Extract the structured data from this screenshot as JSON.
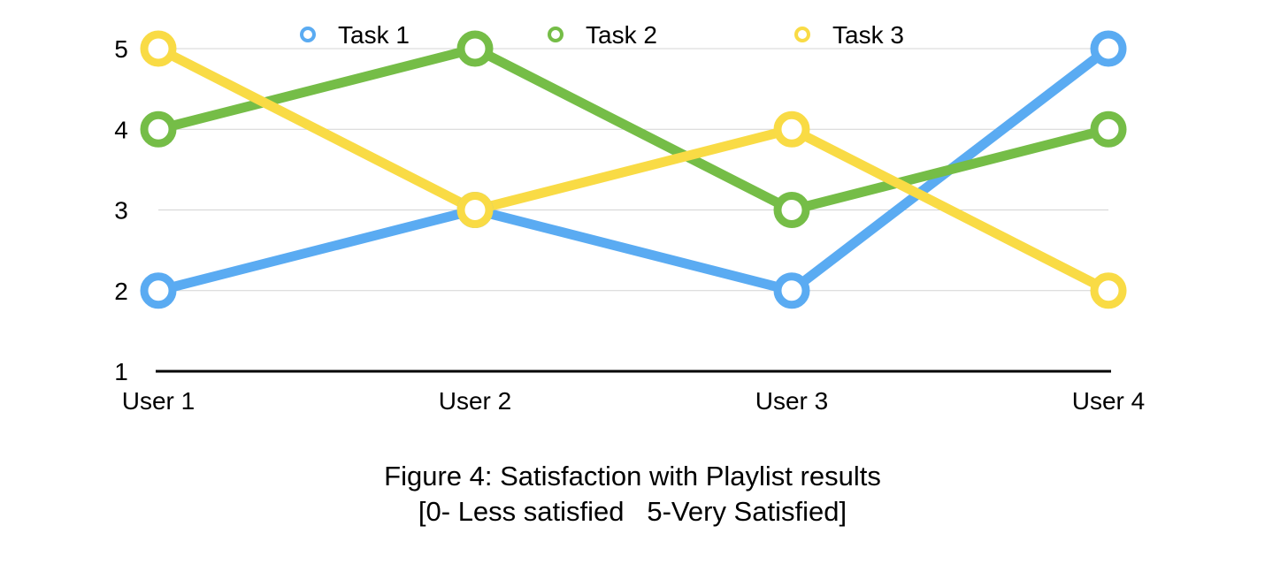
{
  "chart_data": {
    "type": "line",
    "categories": [
      "User 1",
      "User 2",
      "User 3",
      "User 4"
    ],
    "series": [
      {
        "name": "Task 1",
        "color": "#5aabf2",
        "values": [
          2,
          3,
          2,
          5
        ]
      },
      {
        "name": "Task 2",
        "color": "#75bd47",
        "values": [
          4,
          5,
          3,
          4
        ]
      },
      {
        "name": "Task 3",
        "color": "#f9db45",
        "values": [
          5,
          3,
          4,
          2
        ]
      }
    ],
    "yticks": [
      1,
      2,
      3,
      4,
      5
    ],
    "ylim": [
      1,
      5
    ],
    "grid": true,
    "legend_position": "top",
    "title": "",
    "xlabel": "",
    "ylabel": ""
  },
  "caption": {
    "line1": "Figure 4: Satisfaction with Playlist results",
    "line2": "[0- Less satisfied   5-Very Satisfied]"
  }
}
